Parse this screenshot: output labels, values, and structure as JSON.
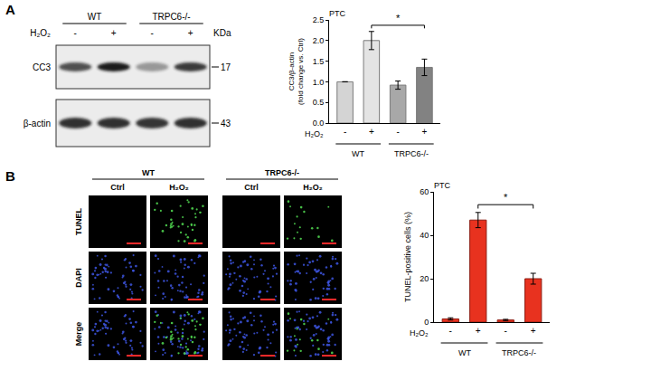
{
  "panels": [
    {
      "letter": "A",
      "blot": {
        "groups": [
          "WT",
          "TRPC6-/-"
        ],
        "treatment_label": "H₂O₂",
        "treatment": [
          "-",
          "+",
          "-",
          "+"
        ],
        "unit_label": "KDa",
        "rows": [
          {
            "label": "CC3",
            "size": 17
          },
          {
            "label": "β-actin",
            "size": 43
          }
        ]
      }
    },
    {
      "letter": "B",
      "images": {
        "groups": [
          "WT",
          "TRPC6-/-"
        ],
        "columns": [
          "Ctrl",
          "H₂O₂",
          "Ctrl",
          "H₂O₂"
        ],
        "rows": [
          "TUNEL",
          "DAPI",
          "Merge"
        ]
      }
    }
  ],
  "chart_data": [
    {
      "type": "bar",
      "title": "PTC",
      "y_label": "CC3/β-actin (fold change vs. Ctrl)",
      "categories": [
        "-",
        "+",
        "-",
        "+"
      ],
      "category_label": "H₂O₂",
      "groups": [
        {
          "label": "WT",
          "from": 0,
          "to": 1
        },
        {
          "label": "TRPC6-/-",
          "from": 2,
          "to": 3
        }
      ],
      "values": [
        1.0,
        2.0,
        0.92,
        1.35
      ],
      "errors": [
        0,
        0.22,
        0.1,
        0.2
      ],
      "colors": [
        "#d4d4d4",
        "#e4e4e4",
        "#a8a8a8",
        "#828282"
      ],
      "ylim": [
        0,
        2.5
      ],
      "yticks": [
        {
          "value": 0,
          "label": "0.0"
        },
        {
          "value": 0.5,
          "label": "0.5"
        },
        {
          "value": 1,
          "label": "1.0"
        },
        {
          "value": 1.5,
          "label": "1.5"
        },
        {
          "value": 2,
          "label": "2.0"
        },
        {
          "value": 2.5,
          "label": "2.5"
        }
      ],
      "significance": [
        {
          "from": 1,
          "to": 3,
          "label": "*"
        }
      ]
    },
    {
      "type": "bar",
      "title": "PTC",
      "y_label": "TUNEL-positive cells (%)",
      "categories": [
        "-",
        "+",
        "-",
        "+"
      ],
      "category_label": "H₂O₂",
      "groups": [
        {
          "label": "WT",
          "from": 0,
          "to": 1
        },
        {
          "label": "TRPC6-/-",
          "from": 2,
          "to": 3
        }
      ],
      "values": [
        1.5,
        47,
        1,
        20
      ],
      "errors": [
        0.5,
        3.5,
        0.3,
        2.5
      ],
      "colors": [
        "#e8321f",
        "#e8321f",
        "#e8321f",
        "#e8321f"
      ],
      "ylim": [
        0,
        60
      ],
      "yticks": [
        0,
        20,
        40,
        60
      ],
      "significance": [
        {
          "from": 1,
          "to": 3,
          "label": "*"
        }
      ]
    }
  ]
}
